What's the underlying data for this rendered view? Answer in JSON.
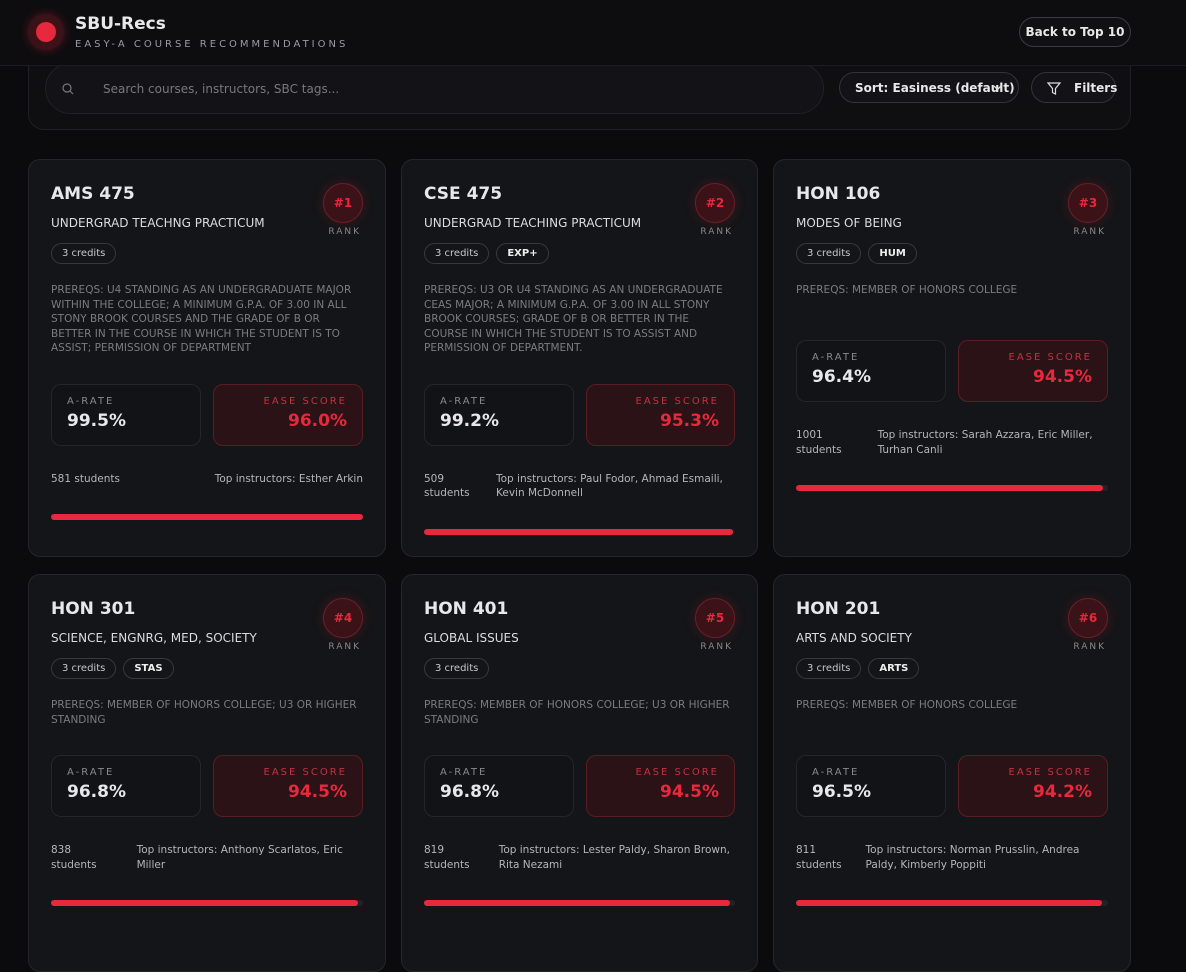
{
  "header": {
    "title": "SBU-Recs",
    "subtitle": "EASY-A COURSE RECOMMENDATIONS",
    "back_button": "Back to Top 10"
  },
  "search": {
    "placeholder": "Search courses, instructors, SBC tags...",
    "sort": "Sort: Easiness (default)",
    "filters": "Filters"
  },
  "labels": {
    "rank": "RANK",
    "a_rate": "A-RATE",
    "ease": "EASE SCORE"
  },
  "courses": [
    {
      "code": "AMS 475",
      "title": "UNDERGRAD TEACHNG PRACTICUM",
      "rank": "#1",
      "credits": "3 credits",
      "tags": [],
      "prereqs": "PREREQS: U4 STANDING AS AN UNDERGRADUATE MAJOR WITHIN THE COLLEGE; A MINIMUM G.P.A. OF 3.00 IN ALL STONY BROOK COURSES AND THE GRADE OF B OR BETTER IN THE COURSE IN WHICH THE STUDENT IS TO ASSIST; PERMISSION OF DEPARTMENT",
      "a_rate": "99.5%",
      "ease": "96.0%",
      "students": "581 students",
      "instructors": "Top instructors: Esther Arkin"
    },
    {
      "code": "CSE 475",
      "title": "UNDERGRAD TEACHING PRACTICUM",
      "rank": "#2",
      "credits": "3 credits",
      "tags": [
        "EXP+"
      ],
      "prereqs": "PREREQS: U3 OR U4 STANDING AS AN UNDERGRADUATE CEAS MAJOR; A MINIMUM G.P.A. OF 3.00 IN ALL STONY BROOK COURSES; GRADE OF B OR BETTER IN THE COURSE IN WHICH THE STUDENT IS TO ASSIST AND PERMISSION OF DEPARTMENT.",
      "a_rate": "99.2%",
      "ease": "95.3%",
      "students": "509 students",
      "instructors": "Top instructors: Paul Fodor, Ahmad Esmaili, Kevin McDonnell"
    },
    {
      "code": "HON 106",
      "title": "MODES OF BEING",
      "rank": "#3",
      "credits": "3 credits",
      "tags": [
        "HUM"
      ],
      "prereqs": "PREREQS: MEMBER OF HONORS COLLEGE",
      "a_rate": "96.4%",
      "ease": "94.5%",
      "students": "1001 students",
      "instructors": "Top instructors: Sarah Azzara, Eric Miller, Turhan Canli"
    },
    {
      "code": "HON 301",
      "title": "SCIENCE, ENGNRG, MED, SOCIETY",
      "rank": "#4",
      "credits": "3 credits",
      "tags": [
        "STAS"
      ],
      "prereqs": "PREREQS: MEMBER OF HONORS COLLEGE; U3 OR HIGHER STANDING",
      "a_rate": "96.8%",
      "ease": "94.5%",
      "students": "838 students",
      "instructors": "Top instructors: Anthony Scarlatos, Eric Miller"
    },
    {
      "code": "HON 401",
      "title": "GLOBAL ISSUES",
      "rank": "#5",
      "credits": "3 credits",
      "tags": [],
      "prereqs": "PREREQS: MEMBER OF HONORS COLLEGE; U3 OR HIGHER STANDING",
      "a_rate": "96.8%",
      "ease": "94.5%",
      "students": "819 students",
      "instructors": "Top instructors: Lester Paldy, Sharon Brown, Rita Nezami"
    },
    {
      "code": "HON 201",
      "title": "ARTS AND SOCIETY",
      "rank": "#6",
      "credits": "3 credits",
      "tags": [
        "ARTS"
      ],
      "prereqs": "PREREQS: MEMBER OF HONORS COLLEGE",
      "a_rate": "96.5%",
      "ease": "94.2%",
      "students": "811 students",
      "instructors": "Top instructors: Norman Prusslin, Andrea Paldy, Kimberly Poppiti"
    }
  ]
}
